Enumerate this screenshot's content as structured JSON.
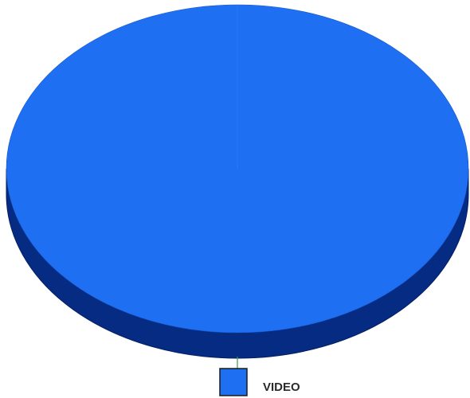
{
  "chart_data": {
    "type": "pie",
    "style": "3d",
    "slices": [
      {
        "label": "VIDEO",
        "value": 100,
        "color": "#1e6ff2",
        "side_color": "#062b82"
      }
    ],
    "legend": {
      "placement": "bottom-center",
      "entries": [
        {
          "label": "VIDEO",
          "color": "#1e6ff2"
        }
      ]
    },
    "title": "",
    "grid": false
  }
}
